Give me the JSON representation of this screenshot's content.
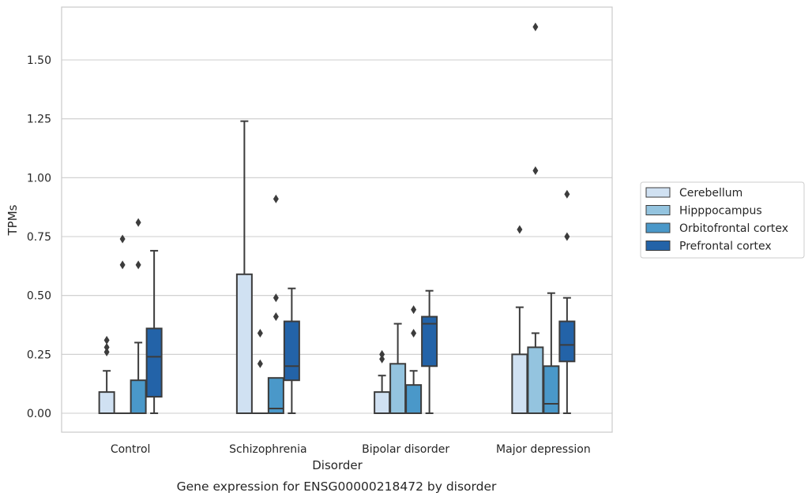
{
  "chart_data": {
    "type": "box",
    "title": "",
    "caption": "Gene expression for ENSG00000218472 by disorder",
    "xlabel": "Disorder",
    "ylabel": "TPMs",
    "ylim": [
      -0.08,
      1.73
    ],
    "yticks": [
      0.0,
      0.25,
      0.5,
      0.75,
      1.0,
      1.25,
      1.5
    ],
    "ytick_labels": [
      "0.00",
      "0.25",
      "0.50",
      "0.75",
      "1.00",
      "1.25",
      "1.50"
    ],
    "categories": [
      "Control",
      "Schizophrenia",
      "Bipolar disorder",
      "Major depression"
    ],
    "grid": "horizontal",
    "legend_position": "right",
    "line_color": "#3c3c3c",
    "series": [
      {
        "name": "Cerebellum",
        "color": "#d0e1f2",
        "boxes": [
          {
            "q1": 0.0,
            "median": 0.0,
            "q3": 0.09,
            "whisker_low": 0.0,
            "whisker_high": 0.18,
            "outliers": [
              0.26,
              0.28,
              0.31
            ]
          },
          {
            "q1": 0.0,
            "median": 0.0,
            "q3": 0.59,
            "whisker_low": 0.0,
            "whisker_high": 1.24,
            "outliers": []
          },
          {
            "q1": 0.0,
            "median": 0.0,
            "q3": 0.09,
            "whisker_low": 0.0,
            "whisker_high": 0.16,
            "outliers": [
              0.23,
              0.25
            ]
          },
          {
            "q1": 0.0,
            "median": 0.0,
            "q3": 0.25,
            "whisker_low": 0.0,
            "whisker_high": 0.45,
            "outliers": [
              0.78
            ]
          }
        ]
      },
      {
        "name": "Hipppocampus",
        "color": "#94c4df",
        "boxes": [
          {
            "q1": 0.0,
            "median": 0.0,
            "q3": 0.0,
            "whisker_low": 0.0,
            "whisker_high": 0.0,
            "outliers": [
              0.63,
              0.74
            ]
          },
          {
            "q1": 0.0,
            "median": 0.0,
            "q3": 0.0,
            "whisker_low": 0.0,
            "whisker_high": 0.0,
            "outliers": [
              0.21,
              0.34
            ]
          },
          {
            "q1": 0.0,
            "median": 0.0,
            "q3": 0.21,
            "whisker_low": 0.0,
            "whisker_high": 0.38,
            "outliers": []
          },
          {
            "q1": 0.0,
            "median": 0.0,
            "q3": 0.28,
            "whisker_low": 0.0,
            "whisker_high": 0.34,
            "outliers": [
              1.03,
              1.64
            ]
          }
        ]
      },
      {
        "name": "Orbitofrontal cortex",
        "color": "#4a98c9",
        "boxes": [
          {
            "q1": 0.0,
            "median": 0.0,
            "q3": 0.14,
            "whisker_low": 0.0,
            "whisker_high": 0.3,
            "outliers": [
              0.63,
              0.81
            ]
          },
          {
            "q1": 0.0,
            "median": 0.02,
            "q3": 0.15,
            "whisker_low": 0.0,
            "whisker_high": 0.15,
            "outliers": [
              0.41,
              0.49,
              0.91
            ]
          },
          {
            "q1": 0.0,
            "median": 0.0,
            "q3": 0.12,
            "whisker_low": 0.0,
            "whisker_high": 0.18,
            "outliers": [
              0.34,
              0.44
            ]
          },
          {
            "q1": 0.0,
            "median": 0.04,
            "q3": 0.2,
            "whisker_low": 0.0,
            "whisker_high": 0.51,
            "outliers": []
          }
        ]
      },
      {
        "name": "Prefrontal cortex",
        "color": "#2363a8",
        "boxes": [
          {
            "q1": 0.07,
            "median": 0.24,
            "q3": 0.36,
            "whisker_low": 0.0,
            "whisker_high": 0.69,
            "outliers": []
          },
          {
            "q1": 0.14,
            "median": 0.2,
            "q3": 0.39,
            "whisker_low": 0.0,
            "whisker_high": 0.53,
            "outliers": []
          },
          {
            "q1": 0.2,
            "median": 0.38,
            "q3": 0.41,
            "whisker_low": 0.0,
            "whisker_high": 0.52,
            "outliers": []
          },
          {
            "q1": 0.22,
            "median": 0.29,
            "q3": 0.39,
            "whisker_low": 0.0,
            "whisker_high": 0.49,
            "outliers": [
              0.75,
              0.93
            ]
          }
        ]
      }
    ]
  }
}
